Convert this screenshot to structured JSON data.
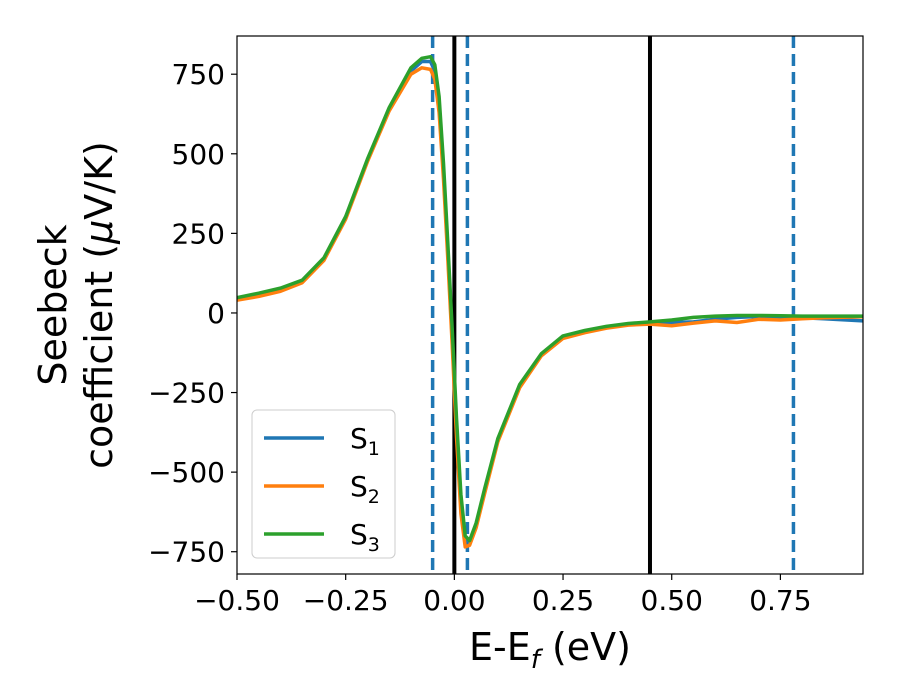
{
  "chart_data": {
    "type": "line",
    "title": "",
    "xlabel": "E-E",
    "xlabel_sub": "f",
    "xlabel_unit": " (eV)",
    "ylabel_line1": "Seebeck",
    "ylabel_line2": "coefficient  (",
    "ylabel_mu": "μ",
    "ylabel_unit": "V/K)",
    "xlim": [
      -0.5,
      0.94
    ],
    "ylim": [
      -820,
      870
    ],
    "xticks": [
      -0.5,
      -0.25,
      0.0,
      0.25,
      0.5,
      0.75
    ],
    "xtick_labels": [
      "−0.50",
      "−0.25",
      "0.00",
      "0.25",
      "0.50",
      "0.75"
    ],
    "yticks": [
      750,
      500,
      250,
      0,
      -250,
      -500,
      -750
    ],
    "ytick_labels": [
      "750",
      "500",
      "250",
      "0",
      "−250",
      "−500",
      "−750"
    ],
    "legend_position": "lower-left",
    "vertical_lines": [
      {
        "x": -0.05,
        "style": "dashed",
        "color": "#1f77b4"
      },
      {
        "x": 0.0,
        "style": "solid",
        "color": "#000000"
      },
      {
        "x": 0.03,
        "style": "dashed",
        "color": "#1f77b4"
      },
      {
        "x": 0.45,
        "style": "solid",
        "color": "#000000"
      },
      {
        "x": 0.78,
        "style": "dashed",
        "color": "#1f77b4"
      }
    ],
    "series": [
      {
        "name": "S",
        "sub": "1",
        "color": "#1f77b4",
        "x": [
          -0.5,
          -0.45,
          -0.4,
          -0.35,
          -0.3,
          -0.25,
          -0.2,
          -0.15,
          -0.1,
          -0.075,
          -0.055,
          -0.045,
          -0.035,
          -0.025,
          -0.015,
          -0.005,
          0.005,
          0.015,
          0.025,
          0.035,
          0.05,
          0.07,
          0.1,
          0.15,
          0.2,
          0.25,
          0.3,
          0.35,
          0.4,
          0.45,
          0.5,
          0.55,
          0.6,
          0.65,
          0.7,
          0.75,
          0.8,
          0.85,
          0.94
        ],
        "y": [
          45,
          60,
          75,
          100,
          170,
          300,
          480,
          640,
          760,
          790,
          790,
          760,
          650,
          440,
          190,
          -80,
          -360,
          -600,
          -720,
          -725,
          -670,
          -560,
          -400,
          -230,
          -130,
          -75,
          -58,
          -45,
          -35,
          -32,
          -30,
          -28,
          -20,
          -14,
          -11,
          -12,
          -15,
          -18,
          -25
        ]
      },
      {
        "name": "S",
        "sub": "2",
        "color": "#ff7f0e",
        "x": [
          -0.5,
          -0.45,
          -0.4,
          -0.35,
          -0.3,
          -0.25,
          -0.2,
          -0.15,
          -0.1,
          -0.075,
          -0.055,
          -0.045,
          -0.035,
          -0.025,
          -0.015,
          -0.005,
          0.005,
          0.015,
          0.025,
          0.035,
          0.05,
          0.07,
          0.1,
          0.15,
          0.2,
          0.25,
          0.3,
          0.35,
          0.4,
          0.45,
          0.5,
          0.55,
          0.6,
          0.65,
          0.7,
          0.75,
          0.8,
          0.85,
          0.94
        ],
        "y": [
          40,
          52,
          68,
          95,
          165,
          295,
          475,
          635,
          750,
          770,
          765,
          735,
          630,
          420,
          170,
          -100,
          -390,
          -630,
          -735,
          -730,
          -675,
          -565,
          -405,
          -235,
          -135,
          -80,
          -62,
          -48,
          -38,
          -35,
          -40,
          -32,
          -25,
          -30,
          -20,
          -22,
          -18,
          -15,
          -12
        ]
      },
      {
        "name": "S",
        "sub": "3",
        "color": "#2ca02c",
        "x": [
          -0.5,
          -0.45,
          -0.4,
          -0.35,
          -0.3,
          -0.25,
          -0.2,
          -0.15,
          -0.1,
          -0.075,
          -0.055,
          -0.045,
          -0.035,
          -0.025,
          -0.015,
          -0.005,
          0.005,
          0.015,
          0.025,
          0.035,
          0.05,
          0.07,
          0.1,
          0.15,
          0.2,
          0.25,
          0.3,
          0.35,
          0.4,
          0.45,
          0.5,
          0.55,
          0.6,
          0.65,
          0.7,
          0.75,
          0.8,
          0.85,
          0.94
        ],
        "y": [
          48,
          62,
          78,
          103,
          173,
          303,
          483,
          645,
          770,
          800,
          805,
          780,
          680,
          470,
          220,
          -50,
          -330,
          -570,
          -700,
          -715,
          -660,
          -550,
          -395,
          -225,
          -128,
          -72,
          -55,
          -42,
          -33,
          -28,
          -22,
          -14,
          -10,
          -8,
          -8,
          -9,
          -10,
          -10,
          -10
        ]
      }
    ]
  }
}
